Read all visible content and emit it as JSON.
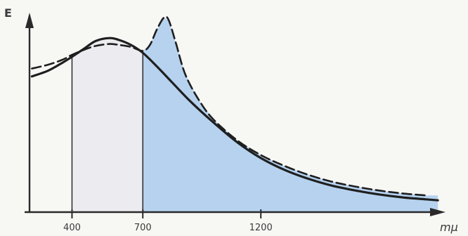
{
  "colors": {
    "background": "#f7f7f4",
    "ink": "#1f1f1f",
    "visible_band_fill": "#ecebf0",
    "infrared_fill": "#b6d2ef"
  },
  "chart_data": {
    "type": "line",
    "ylabel": "E",
    "xlabel": "mμ",
    "x_ticks": [
      400,
      700,
      1200
    ],
    "x_range": [
      220,
      2030
    ],
    "y_range": [
      0,
      1
    ],
    "shaded_regions": [
      {
        "from": 400,
        "to": 700,
        "color": "#ecebf0"
      },
      {
        "from": 700,
        "to": 1950,
        "color": "#b6d2ef"
      }
    ],
    "series": [
      {
        "style": "solid",
        "x": [
          230,
          300,
          360,
          400,
          450,
          500,
          560,
          600,
          650,
          700,
          760,
          820,
          900,
          1000,
          1100,
          1200,
          1300,
          1400,
          1500,
          1600,
          1700,
          1800,
          1900,
          1950
        ],
        "y": [
          0.69,
          0.72,
          0.76,
          0.79,
          0.83,
          0.87,
          0.885,
          0.875,
          0.85,
          0.81,
          0.74,
          0.665,
          0.565,
          0.455,
          0.355,
          0.275,
          0.215,
          0.17,
          0.135,
          0.11,
          0.09,
          0.075,
          0.065,
          0.06
        ]
      },
      {
        "style": "dashed",
        "x": [
          230,
          300,
          360,
          400,
          450,
          500,
          560,
          600,
          650,
          700,
          730,
          760,
          790,
          810,
          840,
          880,
          940,
          1000,
          1100,
          1200,
          1300,
          1400,
          1500,
          1600,
          1700,
          1800,
          1900
        ],
        "y": [
          0.73,
          0.75,
          0.775,
          0.8,
          0.825,
          0.845,
          0.855,
          0.85,
          0.84,
          0.82,
          0.85,
          0.93,
          0.99,
          0.975,
          0.86,
          0.7,
          0.565,
          0.47,
          0.365,
          0.29,
          0.235,
          0.19,
          0.155,
          0.13,
          0.11,
          0.095,
          0.085
        ]
      }
    ]
  }
}
